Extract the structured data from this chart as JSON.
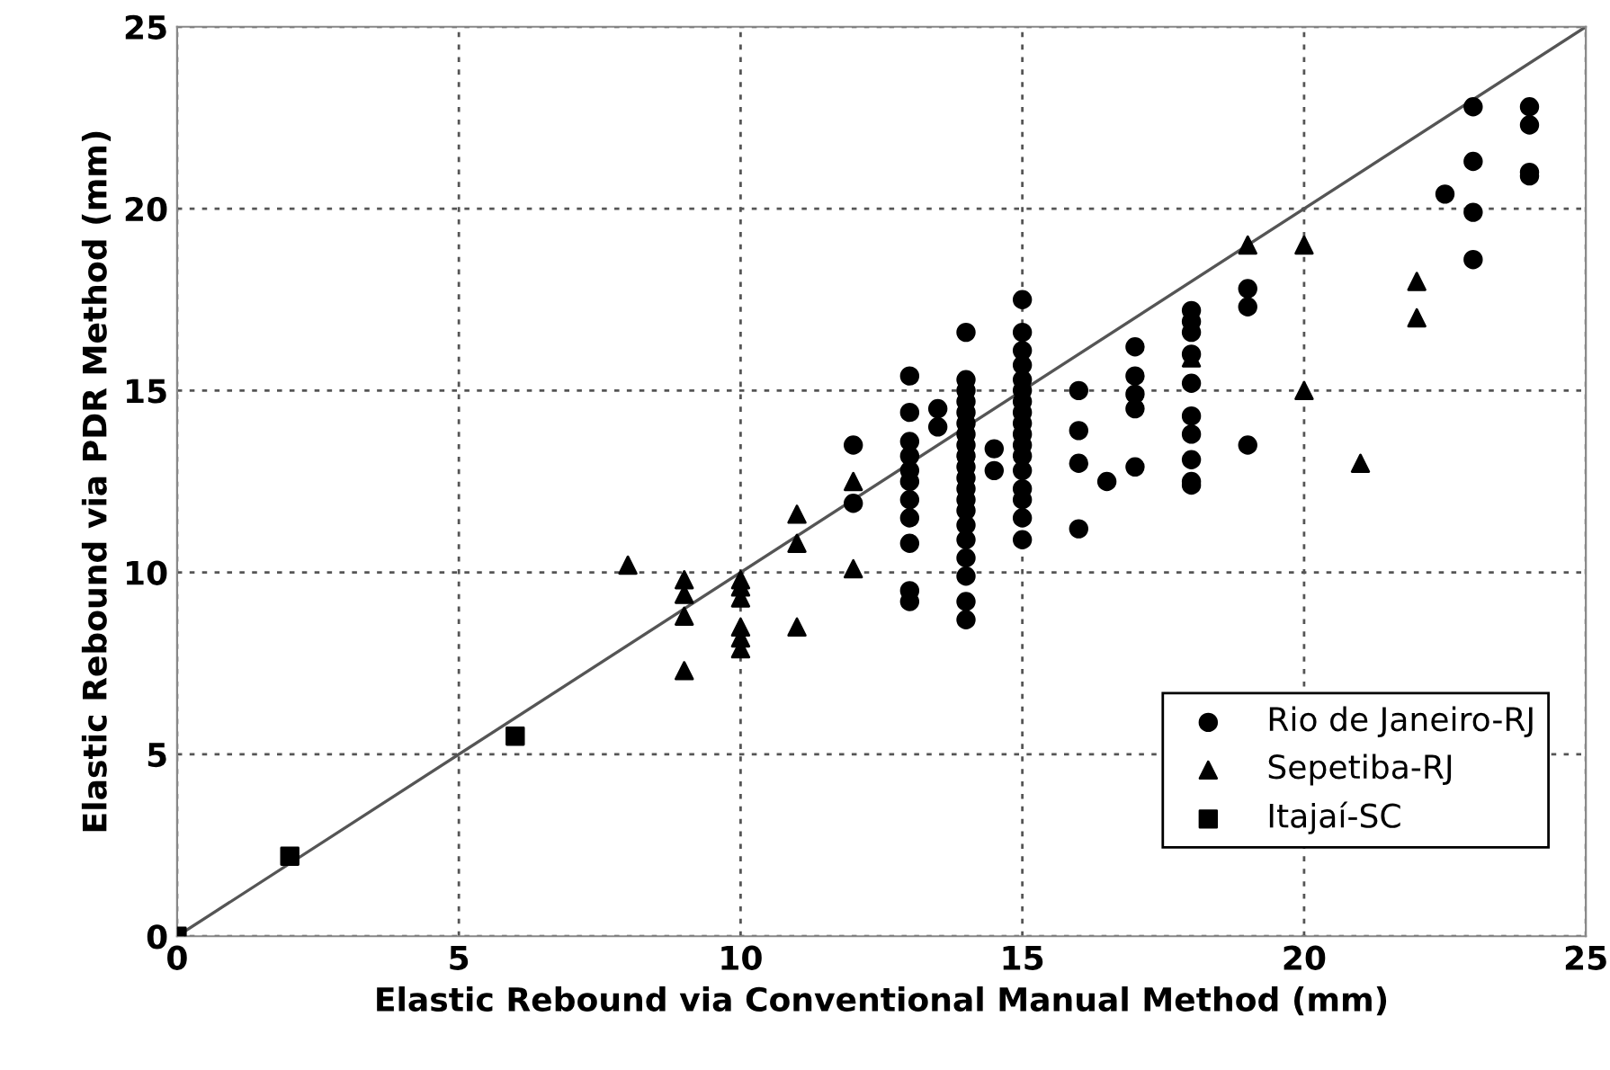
{
  "chart_data": {
    "type": "scatter",
    "xlabel": "Elastic Rebound via Conventional Manual Method (mm)",
    "ylabel": "Elastic Rebound via PDR Method (mm)",
    "xlim": [
      0,
      25
    ],
    "ylim": [
      0,
      25
    ],
    "xticks": [
      0,
      5,
      10,
      15,
      20,
      25
    ],
    "yticks": [
      0,
      5,
      10,
      15,
      20,
      25
    ],
    "grid": true,
    "legend": "bottom right",
    "series": [
      {
        "name": "Rio de Janeiro-RJ",
        "color": "#000000",
        "marker": "circle",
        "x": [
          12,
          12,
          13,
          13,
          13,
          13,
          13,
          13,
          13,
          13,
          13,
          13,
          13,
          13.5,
          13.5,
          14,
          14,
          14,
          14,
          14,
          14,
          14,
          14,
          14,
          14,
          14,
          14,
          14,
          14,
          14,
          14,
          14,
          14,
          14,
          14,
          14.5,
          14.5,
          15,
          15,
          15,
          15,
          15,
          15,
          15,
          15,
          15,
          15,
          15,
          15,
          15,
          15,
          15,
          15,
          15,
          16,
          16,
          16,
          16,
          16.5,
          17,
          17,
          17,
          17,
          17,
          18,
          18,
          18,
          18,
          18,
          18,
          18,
          18,
          18,
          18,
          19,
          19,
          19,
          22.5,
          23,
          23,
          23,
          23,
          24,
          24,
          24,
          24
        ],
        "values": [
          13.5,
          11.9,
          15.4,
          14.4,
          13.6,
          13.2,
          12.8,
          12.5,
          12,
          11.5,
          10.8,
          9.5,
          9.2,
          14.5,
          14.0,
          16.6,
          15.3,
          15.0,
          14.7,
          14.4,
          14.1,
          13.8,
          13.5,
          13.2,
          12.9,
          12.6,
          12.3,
          12.0,
          11.7,
          11.3,
          10.9,
          10.4,
          9.9,
          9.2,
          8.7,
          13.4,
          12.8,
          17.5,
          16.6,
          16.1,
          15.7,
          15.3,
          15.0,
          14.7,
          14.4,
          14.1,
          13.8,
          13.5,
          13.2,
          12.8,
          12.3,
          12.0,
          11.5,
          10.9,
          15.0,
          13.9,
          13.0,
          11.2,
          12.5,
          16.2,
          15.4,
          14.9,
          14.5,
          12.9,
          17.2,
          16.9,
          16.6,
          16.0,
          15.2,
          14.3,
          13.8,
          13.1,
          12.5,
          12.4,
          17.8,
          17.3,
          13.5,
          20.4,
          22.8,
          21.3,
          19.9,
          18.6,
          22.8,
          22.3,
          21.0,
          20.9
        ]
      },
      {
        "name": "Sepetiba-RJ",
        "color": "#000000",
        "marker": "triangle",
        "x": [
          8,
          9,
          9,
          9,
          9,
          10,
          10,
          10,
          10,
          10,
          10,
          11,
          11,
          11,
          12,
          12,
          18,
          19,
          20,
          20,
          21,
          22,
          22
        ],
        "values": [
          10.2,
          9.8,
          9.4,
          8.8,
          7.3,
          9.8,
          9.6,
          9.3,
          8.5,
          8.2,
          7.9,
          11.6,
          10.8,
          8.5,
          12.5,
          10.1,
          15.9,
          19.0,
          19.0,
          15.0,
          13.0,
          18.0,
          17.0
        ]
      },
      {
        "name": "Itajaí-SC",
        "color": "#000000",
        "marker": "square",
        "x": [
          0,
          2,
          6
        ],
        "values": [
          0,
          2.2,
          5.5
        ]
      },
      {
        "type": "line",
        "color": "#555555",
        "marker": "none",
        "x": [
          0,
          25
        ],
        "values": [
          0,
          25
        ]
      }
    ]
  }
}
